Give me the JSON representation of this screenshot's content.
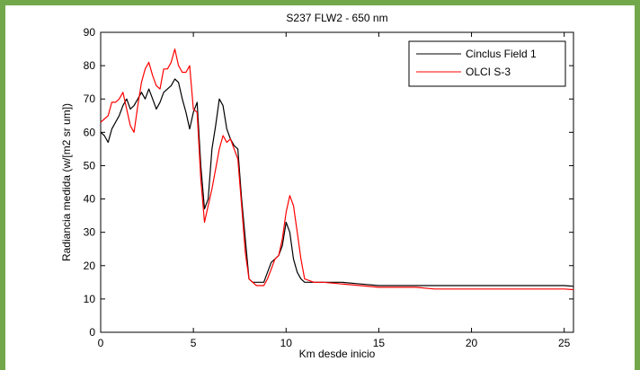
{
  "chart_data": {
    "type": "line",
    "title": "S237 FLW2 - 650 nm",
    "xlabel": "Km desde inicio",
    "ylabel": "Radiancia medida (w/[m2 sr um])",
    "xlim": [
      0,
      25.5
    ],
    "ylim": [
      0,
      90
    ],
    "xticks": [
      "0",
      "5",
      "10",
      "15",
      "20",
      "25"
    ],
    "yticks": [
      "0",
      "10",
      "20",
      "30",
      "40",
      "50",
      "60",
      "70",
      "80",
      "90"
    ],
    "grid": false,
    "legend_position": "top-right",
    "series": [
      {
        "name": "Cinclus Field 1",
        "color": "#000000",
        "x": [
          0,
          0.2,
          0.4,
          0.6,
          0.8,
          1.0,
          1.2,
          1.4,
          1.6,
          1.8,
          2.0,
          2.2,
          2.4,
          2.6,
          2.8,
          3.0,
          3.2,
          3.4,
          3.6,
          3.8,
          4.0,
          4.2,
          4.4,
          4.6,
          4.8,
          5.0,
          5.2,
          5.4,
          5.6,
          5.8,
          6.0,
          6.2,
          6.4,
          6.6,
          6.8,
          7.0,
          7.2,
          7.4,
          7.6,
          7.8,
          8.0,
          8.2,
          8.4,
          8.6,
          8.8,
          9.0,
          9.2,
          9.4,
          9.6,
          9.8,
          10.0,
          10.2,
          10.4,
          10.6,
          10.8,
          11.0,
          11.5,
          12,
          13,
          14,
          15,
          16,
          17,
          18,
          19,
          20,
          21,
          22,
          23,
          24,
          25,
          25.5
        ],
        "y": [
          60,
          59,
          57,
          61,
          63,
          65,
          68,
          70,
          67,
          68,
          70,
          72,
          70,
          73,
          70,
          67,
          69,
          72,
          73,
          74,
          76,
          75,
          70,
          66,
          61,
          66,
          69,
          50,
          37,
          40,
          55,
          62,
          70,
          68,
          61,
          58,
          56,
          55,
          40,
          28,
          16,
          15,
          15,
          15,
          15,
          18,
          21,
          22,
          23,
          26,
          33,
          30,
          22,
          18,
          16,
          15,
          15,
          15,
          15,
          14.5,
          14,
          14,
          14,
          14,
          14,
          14,
          14,
          14,
          14,
          14,
          14,
          13.8
        ]
      },
      {
        "name": "OLCI S-3",
        "color": "#ff0000",
        "x": [
          0,
          0.2,
          0.4,
          0.6,
          0.8,
          1.0,
          1.2,
          1.4,
          1.6,
          1.8,
          2.0,
          2.2,
          2.4,
          2.6,
          2.8,
          3.0,
          3.2,
          3.4,
          3.6,
          3.8,
          4.0,
          4.2,
          4.4,
          4.6,
          4.8,
          5.0,
          5.2,
          5.4,
          5.6,
          5.8,
          6.0,
          6.2,
          6.4,
          6.6,
          6.8,
          7.0,
          7.2,
          7.4,
          7.6,
          7.8,
          8.0,
          8.2,
          8.4,
          8.6,
          8.8,
          9.0,
          9.2,
          9.4,
          9.6,
          9.8,
          10.0,
          10.2,
          10.4,
          10.6,
          10.8,
          11.0,
          11.5,
          12,
          13,
          14,
          15,
          16,
          17,
          18,
          19,
          20,
          21,
          22,
          23,
          24,
          25,
          25.5
        ],
        "y": [
          63,
          64,
          65,
          69,
          69,
          70,
          72,
          67,
          62,
          60,
          68,
          75,
          79,
          81,
          77,
          74,
          73,
          79,
          79,
          81,
          85,
          80,
          78,
          78,
          80,
          67,
          66,
          46,
          33,
          38,
          43,
          49,
          55,
          59,
          57,
          58,
          55,
          52,
          38,
          24,
          16,
          15,
          14,
          14,
          14,
          16,
          19,
          22,
          23,
          28,
          36,
          41,
          38,
          30,
          22,
          16,
          15,
          15,
          14.5,
          14,
          13.5,
          13.5,
          13.5,
          13,
          13,
          13,
          13,
          13,
          13,
          13,
          13,
          12.8
        ]
      }
    ]
  }
}
